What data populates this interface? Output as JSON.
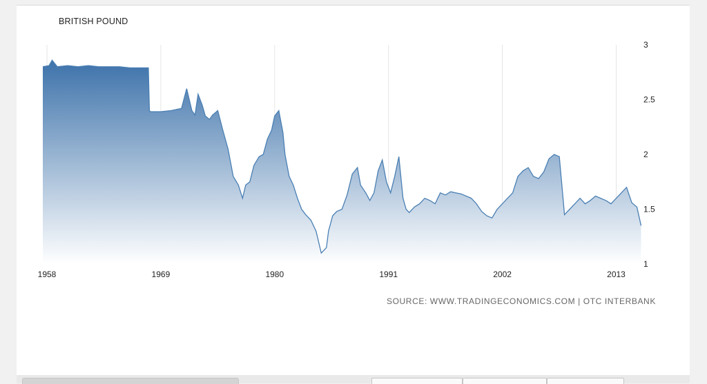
{
  "chart_data": {
    "type": "area",
    "title": "BRITISH POUND",
    "source": "SOURCE: WWW.TRADINGECONOMICS.COM | OTC INTERBANK",
    "xlabel": "",
    "ylabel": "",
    "x_tick_labels": [
      "1958",
      "1969",
      "1980",
      "1991",
      "2002",
      "2013"
    ],
    "y_tick_labels": [
      "1",
      "1.5",
      "2",
      "2.5",
      "3"
    ],
    "xlim": [
      1957.6,
      2015.5
    ],
    "ylim": [
      1,
      3
    ],
    "y_axis_side": "right",
    "grid": "vertical",
    "colors": {
      "line": "#4a7fb3",
      "fill_top": "#3d72aa",
      "fill_bottom": "#ffffff",
      "grid": "#e6e6e6"
    },
    "series": [
      {
        "x": [
          1957.6,
          1958.2,
          1958.5,
          1959,
          1960,
          1961,
          1962,
          1963,
          1964,
          1965,
          1966,
          1967,
          1967.8,
          1967.9,
          1968,
          1969,
          1970,
          1971,
          1971.5,
          1972.0,
          1972.3,
          1972.6,
          1973.0,
          1973.3,
          1973.7,
          1974,
          1974.5,
          1975,
          1975.5,
          1976,
          1976.5,
          1976.9,
          1977.2,
          1977.6,
          1978,
          1978.5,
          1978.9,
          1979.3,
          1979.7,
          1980,
          1980.4,
          1980.8,
          1981,
          1981.4,
          1981.8,
          1982.2,
          1982.6,
          1983,
          1983.5,
          1984,
          1984.5,
          1985.0,
          1985.2,
          1985.6,
          1986,
          1986.5,
          1987,
          1987.5,
          1988,
          1988.3,
          1988.8,
          1989.2,
          1989.6,
          1990,
          1990.4,
          1990.8,
          1991.2,
          1991.6,
          1992,
          1992.4,
          1992.7,
          1993,
          1993.5,
          1994,
          1994.5,
          1995,
          1995.5,
          1996,
          1996.5,
          1997,
          1997.5,
          1998,
          1998.5,
          1999,
          1999.5,
          2000,
          2000.5,
          2001,
          2001.5,
          2002,
          2002.5,
          2003,
          2003.5,
          2004,
          2004.5,
          2005,
          2005.5,
          2006,
          2006.5,
          2007,
          2007.5,
          2008,
          2008.5,
          2009.0,
          2009.5,
          2010,
          2010.5,
          2011,
          2011.5,
          2012,
          2012.5,
          2013,
          2013.5,
          2014,
          2014.5,
          2015,
          2015.4
        ],
        "values": [
          2.8,
          2.81,
          2.86,
          2.8,
          2.81,
          2.8,
          2.81,
          2.8,
          2.8,
          2.8,
          2.79,
          2.79,
          2.79,
          2.4,
          2.39,
          2.39,
          2.4,
          2.42,
          2.6,
          2.4,
          2.36,
          2.55,
          2.45,
          2.35,
          2.32,
          2.36,
          2.4,
          2.22,
          2.05,
          1.8,
          1.72,
          1.6,
          1.72,
          1.75,
          1.9,
          1.98,
          2.0,
          2.14,
          2.22,
          2.35,
          2.4,
          2.2,
          2.0,
          1.8,
          1.72,
          1.6,
          1.5,
          1.45,
          1.4,
          1.3,
          1.1,
          1.15,
          1.3,
          1.44,
          1.48,
          1.5,
          1.63,
          1.82,
          1.88,
          1.72,
          1.65,
          1.58,
          1.65,
          1.85,
          1.95,
          1.75,
          1.65,
          1.8,
          1.98,
          1.6,
          1.5,
          1.47,
          1.52,
          1.55,
          1.6,
          1.58,
          1.55,
          1.65,
          1.63,
          1.66,
          1.65,
          1.64,
          1.62,
          1.6,
          1.55,
          1.48,
          1.44,
          1.42,
          1.5,
          1.55,
          1.6,
          1.65,
          1.8,
          1.85,
          1.88,
          1.8,
          1.78,
          1.84,
          1.96,
          2.0,
          1.98,
          1.45,
          1.5,
          1.55,
          1.6,
          1.55,
          1.58,
          1.62,
          1.6,
          1.58,
          1.55,
          1.6,
          1.65,
          1.7,
          1.56,
          1.52,
          1.35
        ]
      }
    ]
  }
}
